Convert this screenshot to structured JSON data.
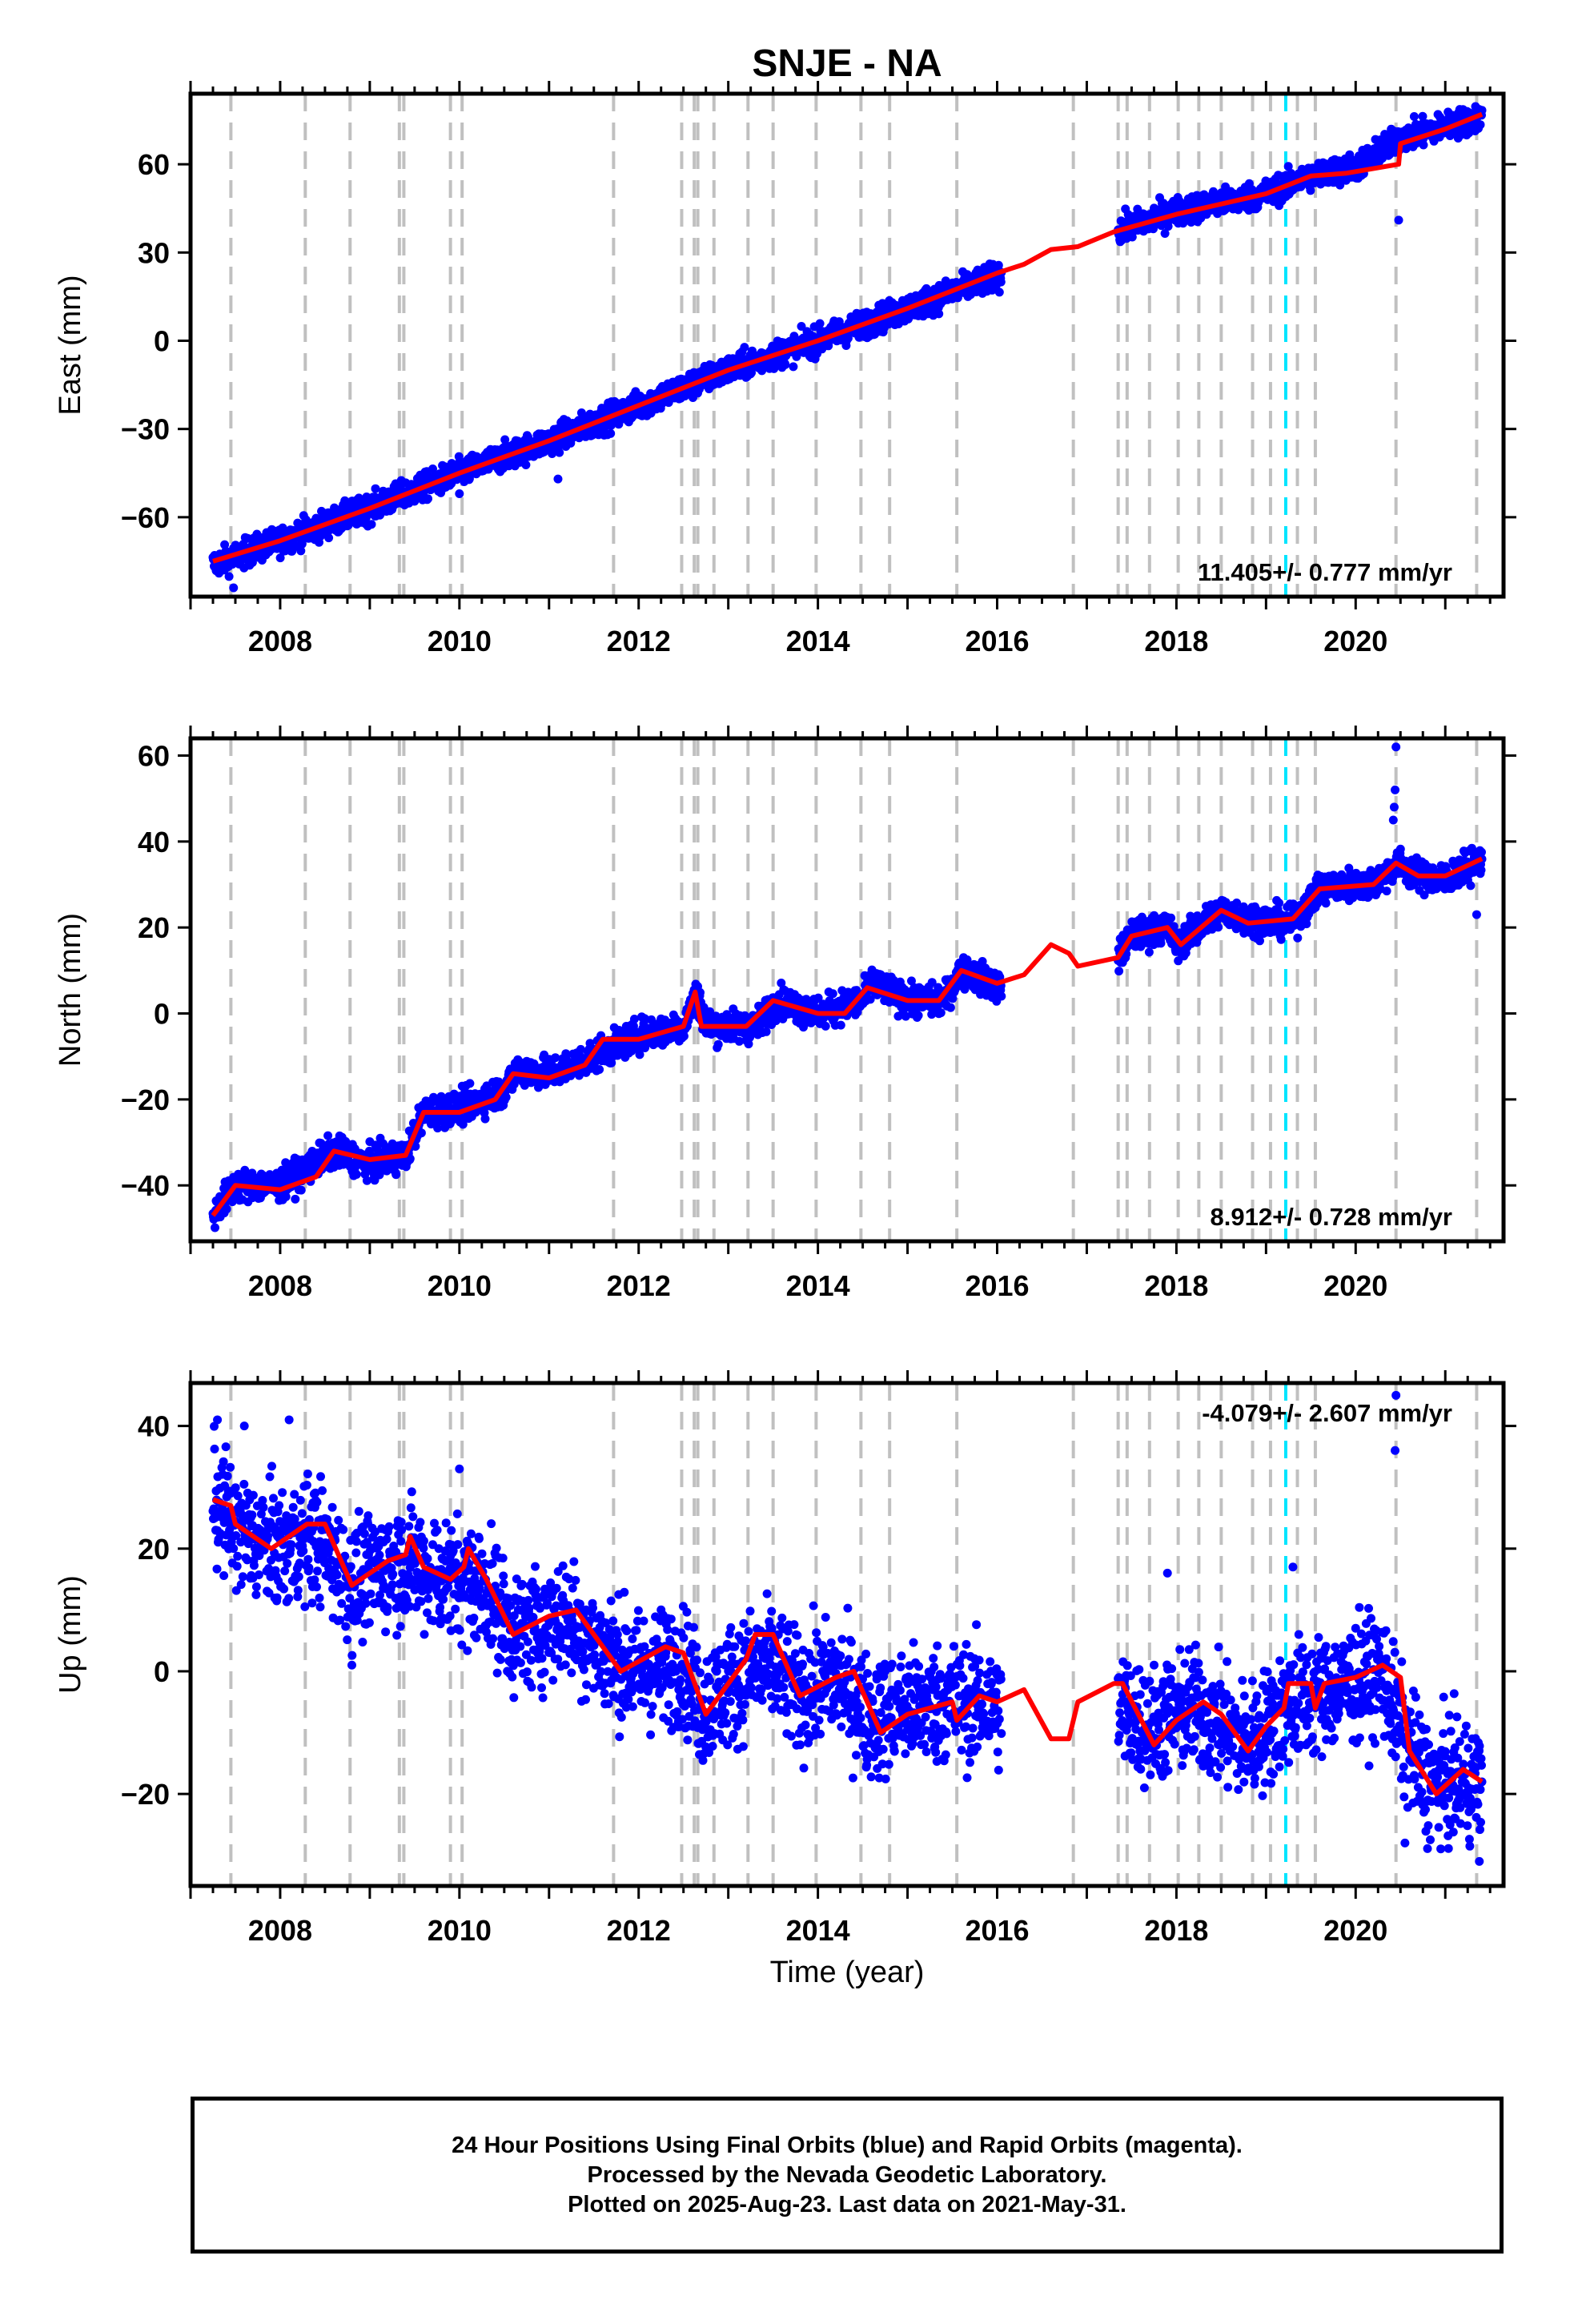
{
  "title": "SNJE - NA",
  "xlabel": "Time (year)",
  "colors": {
    "final_orbits": "#0000ff",
    "model": "#ff0000",
    "event_line": "#c0c0c0",
    "antenna_change": "#00e5ff"
  },
  "footer": {
    "line1": "24 Hour Positions Using Final Orbits (blue) and Rapid Orbits (magenta).",
    "line2": "Processed by the Nevada Geodetic Laboratory.",
    "line3": "Plotted on 2025-Aug-23. Last data on 2021-May-31."
  },
  "chart_data": [
    {
      "type": "scatter",
      "ylabel": "East (mm)",
      "xlim": [
        2007.0,
        2021.65
      ],
      "ylim": [
        -87,
        84
      ],
      "xticks": [
        2008,
        2010,
        2012,
        2014,
        2016,
        2018,
        2020
      ],
      "yticks": [
        -60,
        -30,
        0,
        30,
        60
      ],
      "rate_label": "11.405+/- 0.777 mm/yr",
      "rate_position": "bottom-right",
      "series": [
        {
          "role": "daily-positions",
          "segments": [
            [
              2007.25,
              2016.05
            ],
            [
              2017.35,
              2021.41
            ]
          ],
          "noise": 2.3,
          "trend_points": [
            [
              2007.25,
              -76
            ],
            [
              2008.0,
              -68
            ],
            [
              2009.0,
              -57
            ],
            [
              2010.0,
              -45
            ],
            [
              2011.0,
              -34
            ],
            [
              2012.0,
              -22
            ],
            [
              2013.0,
              -10
            ],
            [
              2014.0,
              0
            ],
            [
              2015.0,
              11
            ],
            [
              2016.0,
              22
            ],
            [
              2017.4,
              38
            ],
            [
              2018.0,
              44
            ],
            [
              2019.0,
              50
            ],
            [
              2019.5,
              56
            ],
            [
              2020.0,
              59
            ],
            [
              2020.5,
              69
            ],
            [
              2021.41,
              76
            ]
          ],
          "outliers": [
            [
              2007.48,
              -84
            ],
            [
              2010.0,
              -52
            ],
            [
              2011.1,
              -47
            ],
            [
              2019.05,
              53
            ],
            [
              2020.48,
              41
            ],
            [
              2020.45,
              70
            ]
          ]
        },
        {
          "role": "model-fit",
          "points": [
            [
              2007.25,
              -75
            ],
            [
              2008.0,
              -68
            ],
            [
              2009.0,
              -57
            ],
            [
              2010.0,
              -45
            ],
            [
              2011.0,
              -34
            ],
            [
              2012.0,
              -22
            ],
            [
              2013.0,
              -10
            ],
            [
              2014.0,
              0
            ],
            [
              2015.0,
              11
            ],
            [
              2016.0,
              23
            ],
            [
              2016.3,
              26
            ],
            [
              2016.6,
              31
            ],
            [
              2016.9,
              32
            ],
            [
              2017.3,
              37
            ],
            [
              2018.0,
              43
            ],
            [
              2019.0,
              50
            ],
            [
              2019.5,
              56
            ],
            [
              2019.9,
              57
            ],
            [
              2020.48,
              60
            ],
            [
              2020.5,
              67
            ],
            [
              2021.0,
              72
            ],
            [
              2021.41,
              77
            ]
          ]
        }
      ]
    },
    {
      "type": "scatter",
      "ylabel": "North (mm)",
      "xlim": [
        2007.0,
        2021.65
      ],
      "ylim": [
        -53,
        64
      ],
      "xticks": [
        2008,
        2010,
        2012,
        2014,
        2016,
        2018,
        2020
      ],
      "yticks": [
        -40,
        -20,
        0,
        20,
        40,
        60
      ],
      "rate_label": "8.912+/- 0.728 mm/yr",
      "rate_position": "bottom-right",
      "series": [
        {
          "role": "daily-positions",
          "segments": [
            [
              2007.25,
              2016.05
            ],
            [
              2017.35,
              2021.41
            ]
          ],
          "noise": 1.8,
          "trend_points": [
            [
              2007.25,
              -47
            ],
            [
              2007.5,
              -40
            ],
            [
              2008.0,
              -40
            ],
            [
              2008.6,
              -32
            ],
            [
              2009.0,
              -35
            ],
            [
              2009.4,
              -33
            ],
            [
              2009.6,
              -23
            ],
            [
              2010.0,
              -22
            ],
            [
              2010.5,
              -18
            ],
            [
              2010.65,
              -13
            ],
            [
              2011.0,
              -14
            ],
            [
              2011.5,
              -10
            ],
            [
              2012.0,
              -5
            ],
            [
              2012.5,
              -3
            ],
            [
              2012.65,
              5
            ],
            [
              2012.75,
              -3
            ],
            [
              2013.3,
              -3
            ],
            [
              2013.55,
              3
            ],
            [
              2014.0,
              0
            ],
            [
              2014.5,
              3
            ],
            [
              2014.6,
              7
            ],
            [
              2015.0,
              3
            ],
            [
              2015.4,
              3
            ],
            [
              2015.6,
              10
            ],
            [
              2016.05,
              6
            ],
            [
              2017.35,
              13
            ],
            [
              2017.5,
              18
            ],
            [
              2017.9,
              20
            ],
            [
              2018.0,
              16
            ],
            [
              2018.5,
              24
            ],
            [
              2018.8,
              22
            ],
            [
              2019.3,
              21
            ],
            [
              2019.6,
              29
            ],
            [
              2019.9,
              30
            ],
            [
              2020.2,
              30
            ],
            [
              2020.45,
              35
            ],
            [
              2020.7,
              32
            ],
            [
              2021.0,
              31
            ],
            [
              2021.41,
              36
            ]
          ],
          "outliers": [
            [
              2020.45,
              62
            ],
            [
              2020.44,
              52
            ],
            [
              2020.43,
              48
            ],
            [
              2020.42,
              45
            ],
            [
              2021.35,
              23
            ]
          ]
        },
        {
          "role": "model-fit",
          "points": [
            [
              2007.25,
              -47
            ],
            [
              2007.5,
              -40
            ],
            [
              2008.0,
              -41
            ],
            [
              2008.4,
              -38
            ],
            [
              2008.6,
              -32
            ],
            [
              2009.0,
              -34
            ],
            [
              2009.4,
              -33
            ],
            [
              2009.6,
              -23
            ],
            [
              2010.0,
              -23
            ],
            [
              2010.4,
              -20
            ],
            [
              2010.6,
              -14
            ],
            [
              2011.0,
              -15
            ],
            [
              2011.4,
              -12
            ],
            [
              2011.6,
              -6
            ],
            [
              2012.0,
              -6
            ],
            [
              2012.5,
              -3
            ],
            [
              2012.63,
              5
            ],
            [
              2012.7,
              -3
            ],
            [
              2013.2,
              -3
            ],
            [
              2013.5,
              3
            ],
            [
              2014.0,
              0
            ],
            [
              2014.3,
              0
            ],
            [
              2014.55,
              6
            ],
            [
              2015.0,
              3
            ],
            [
              2015.35,
              3
            ],
            [
              2015.6,
              10
            ],
            [
              2016.0,
              7
            ],
            [
              2016.3,
              9
            ],
            [
              2016.6,
              16
            ],
            [
              2016.8,
              14
            ],
            [
              2016.9,
              11
            ],
            [
              2017.35,
              13
            ],
            [
              2017.5,
              18
            ],
            [
              2017.9,
              20
            ],
            [
              2018.05,
              16
            ],
            [
              2018.5,
              24
            ],
            [
              2018.8,
              21
            ],
            [
              2019.3,
              22
            ],
            [
              2019.6,
              29
            ],
            [
              2020.2,
              30
            ],
            [
              2020.45,
              35
            ],
            [
              2020.7,
              32
            ],
            [
              2021.0,
              32
            ],
            [
              2021.41,
              36
            ]
          ]
        }
      ]
    },
    {
      "type": "scatter",
      "ylabel": "Up (mm)",
      "xlim": [
        2007.0,
        2021.65
      ],
      "ylim": [
        -35,
        47
      ],
      "xticks": [
        2008,
        2010,
        2012,
        2014,
        2016,
        2018,
        2020
      ],
      "yticks": [
        -20,
        0,
        20,
        40
      ],
      "rate_label": "-4.079+/- 2.607 mm/yr",
      "rate_position": "top-right",
      "series": [
        {
          "role": "daily-positions",
          "segments": [
            [
              2007.25,
              2016.05
            ],
            [
              2017.35,
              2021.41
            ]
          ],
          "noise": 4.8,
          "trend_points": [
            [
              2007.25,
              28
            ],
            [
              2007.6,
              22
            ],
            [
              2008.0,
              20
            ],
            [
              2008.4,
              22
            ],
            [
              2008.8,
              14
            ],
            [
              2009.3,
              18
            ],
            [
              2009.9,
              15
            ],
            [
              2010.3,
              14
            ],
            [
              2010.6,
              6
            ],
            [
              2011.2,
              9
            ],
            [
              2011.6,
              3
            ],
            [
              2012.0,
              0
            ],
            [
              2012.5,
              1
            ],
            [
              2012.7,
              -6
            ],
            [
              2013.2,
              0
            ],
            [
              2013.5,
              1
            ],
            [
              2013.8,
              -4
            ],
            [
              2014.2,
              -1
            ],
            [
              2014.6,
              -8
            ],
            [
              2015.0,
              -6
            ],
            [
              2015.5,
              -5
            ],
            [
              2016.05,
              -6
            ],
            [
              2017.35,
              -6
            ],
            [
              2017.7,
              -9
            ],
            [
              2018.2,
              -6
            ],
            [
              2018.8,
              -12
            ],
            [
              2019.3,
              -5
            ],
            [
              2019.8,
              -3
            ],
            [
              2020.3,
              0
            ],
            [
              2020.5,
              -10
            ],
            [
              2020.8,
              -18
            ],
            [
              2021.41,
              -18
            ]
          ],
          "outliers": [
            [
              2007.3,
              41
            ],
            [
              2007.6,
              40
            ],
            [
              2008.1,
              41
            ],
            [
              2008.8,
              1
            ],
            [
              2010.0,
              33
            ],
            [
              2020.45,
              45
            ],
            [
              2020.44,
              36
            ],
            [
              2021.38,
              -31
            ],
            [
              2020.55,
              -28
            ],
            [
              2017.9,
              16
            ],
            [
              2019.3,
              17
            ]
          ]
        },
        {
          "role": "model-fit",
          "points": [
            [
              2007.25,
              28
            ],
            [
              2007.45,
              27
            ],
            [
              2007.5,
              24
            ],
            [
              2007.9,
              20
            ],
            [
              2008.3,
              24
            ],
            [
              2008.5,
              24
            ],
            [
              2008.8,
              14
            ],
            [
              2009.2,
              18
            ],
            [
              2009.4,
              19
            ],
            [
              2009.45,
              22
            ],
            [
              2009.6,
              17
            ],
            [
              2009.9,
              15
            ],
            [
              2010.05,
              17
            ],
            [
              2010.1,
              20
            ],
            [
              2010.3,
              15
            ],
            [
              2010.6,
              6
            ],
            [
              2011.0,
              9
            ],
            [
              2011.3,
              10
            ],
            [
              2011.6,
              4
            ],
            [
              2011.8,
              0
            ],
            [
              2012.3,
              4
            ],
            [
              2012.5,
              3
            ],
            [
              2012.75,
              -7
            ],
            [
              2013.2,
              2
            ],
            [
              2013.3,
              6
            ],
            [
              2013.5,
              6
            ],
            [
              2013.8,
              -4
            ],
            [
              2014.2,
              -1
            ],
            [
              2014.4,
              0
            ],
            [
              2014.7,
              -10
            ],
            [
              2015.0,
              -7
            ],
            [
              2015.5,
              -5
            ],
            [
              2015.55,
              -8
            ],
            [
              2015.8,
              -4
            ],
            [
              2016.0,
              -5
            ],
            [
              2016.3,
              -3
            ],
            [
              2016.6,
              -11
            ],
            [
              2016.8,
              -11
            ],
            [
              2016.9,
              -5
            ],
            [
              2017.3,
              -2
            ],
            [
              2017.4,
              -2
            ],
            [
              2017.75,
              -12
            ],
            [
              2018.0,
              -8
            ],
            [
              2018.3,
              -5
            ],
            [
              2018.5,
              -7
            ],
            [
              2018.8,
              -13
            ],
            [
              2019.0,
              -9
            ],
            [
              2019.2,
              -6
            ],
            [
              2019.25,
              -2
            ],
            [
              2019.5,
              -2
            ],
            [
              2019.55,
              -6
            ],
            [
              2019.65,
              -2
            ],
            [
              2020.0,
              -1
            ],
            [
              2020.3,
              1
            ],
            [
              2020.5,
              -1
            ],
            [
              2020.6,
              -13
            ],
            [
              2020.9,
              -20
            ],
            [
              2021.2,
              -16
            ],
            [
              2021.41,
              -18
            ]
          ]
        }
      ]
    }
  ],
  "event_years": [
    2007.45,
    2008.28,
    2008.78,
    2009.33,
    2009.38,
    2009.9,
    2010.03,
    2011.72,
    2012.48,
    2012.62,
    2012.66,
    2012.84,
    2013.22,
    2013.5,
    2013.98,
    2014.48,
    2014.8,
    2015.55,
    2016.85,
    2017.35,
    2017.45,
    2017.7,
    2018.02,
    2018.25,
    2018.5,
    2018.85,
    2019.05,
    2019.35,
    2019.55,
    2020.45,
    2021.35
  ],
  "antenna_event_years": [
    2019.22
  ]
}
